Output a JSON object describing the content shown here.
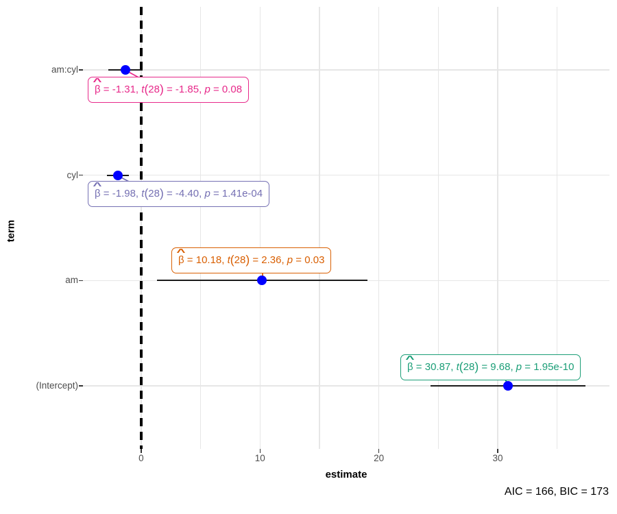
{
  "chart_data": {
    "type": "scatter",
    "subtype": "regression-coefficient-forest-plot",
    "title": "",
    "xlabel": "estimate",
    "ylabel": "term",
    "caption": "AIC = 166, BIC = 173",
    "aic": 166,
    "bic": 173,
    "xlim": [
      -4.9,
      39.4
    ],
    "x_major_ticks": [
      0,
      10,
      20,
      30
    ],
    "x_gridlines": [
      0,
      5,
      10,
      15,
      20,
      25,
      30,
      35
    ],
    "grid": true,
    "legend": "none",
    "categories": [
      "am:cyl",
      "cyl",
      "am",
      "(Intercept)"
    ],
    "zero_reference_line": 0,
    "point_color": "#0000ff",
    "whisker_color": "#1a1a1a",
    "series": [
      {
        "term": "am:cyl",
        "estimate": -1.31,
        "conf_low": -2.76,
        "conf_high": 0.14,
        "statistic": -1.85,
        "df": 28,
        "p_label": "0.08",
        "color": "#e7298a",
        "label_text": "β̂ = -1.31, t(28) = -1.85, p = 0.08",
        "label_parts": {
          "hat": "^",
          "beta": "β",
          "eq_est": " = -1.31, ",
          "t": "t",
          "lparen": "(",
          "df": "28",
          "rparen": ")",
          "eq_t": " = -1.85, ",
          "p": "p",
          "eq_p": " = 0.08"
        }
      },
      {
        "term": "cyl",
        "estimate": -1.98,
        "conf_low": -2.9,
        "conf_high": -1.06,
        "statistic": -4.4,
        "df": 28,
        "p_label": "1.41e-04",
        "color": "#7570b3",
        "label_text": "β̂ = -1.98, t(28) = -4.40, p = 1.41e-04",
        "label_parts": {
          "hat": "^",
          "beta": "β",
          "eq_est": " = -1.98, ",
          "t": "t",
          "lparen": "(",
          "df": "28",
          "rparen": ")",
          "eq_t": " = -4.40, ",
          "p": "p",
          "eq_p": " = 1.41e-04"
        }
      },
      {
        "term": "am",
        "estimate": 10.18,
        "conf_low": 1.35,
        "conf_high": 19.01,
        "statistic": 2.36,
        "df": 28,
        "p_label": "0.03",
        "color": "#d95f02",
        "label_text": "β̂ = 10.18, t(28) = 2.36, p = 0.03",
        "label_parts": {
          "hat": "^",
          "beta": "β",
          "eq_est": " = 10.18, ",
          "t": "t",
          "lparen": "(",
          "df": "28",
          "rparen": ")",
          "eq_t": " = 2.36, ",
          "p": "p",
          "eq_p": " = 0.03"
        }
      },
      {
        "term": "(Intercept)",
        "estimate": 30.87,
        "conf_low": 24.34,
        "conf_high": 37.4,
        "statistic": 9.68,
        "df": 28,
        "p_label": "1.95e-10",
        "color": "#1b9e77",
        "label_text": "β̂ = 30.87, t(28) = 9.68, p = 1.95e-10",
        "label_parts": {
          "hat": "^",
          "beta": "β",
          "eq_est": " = 30.87, ",
          "t": "t",
          "lparen": "(",
          "df": "28",
          "rparen": ")",
          "eq_t": " = 9.68, ",
          "p": "p",
          "eq_p": " = 1.95e-10"
        }
      }
    ]
  }
}
